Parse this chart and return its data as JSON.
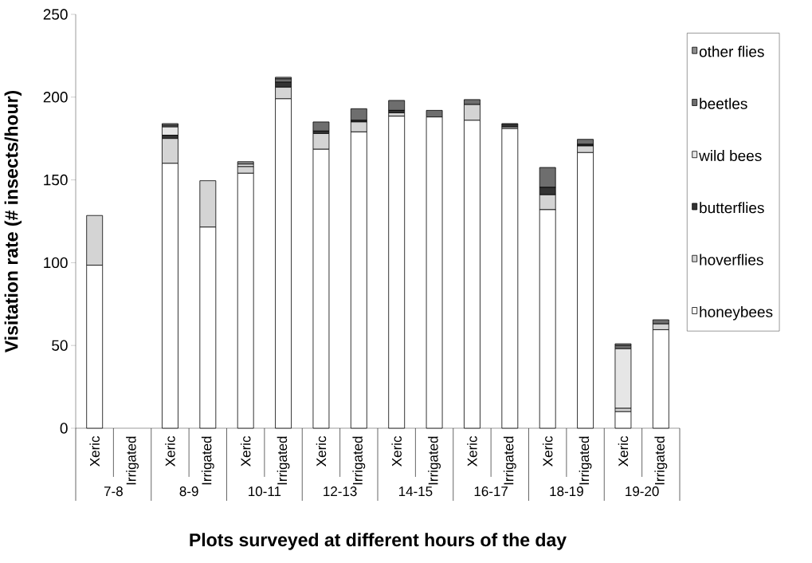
{
  "chart_data": {
    "type": "bar",
    "stacked": true,
    "xlabel": "Plots surveyed at different hours of the day",
    "ylabel": "Visitation rate (# insects/hour)",
    "categories": [
      "Xeric",
      "Irrigated",
      "Xeric",
      "Irrigated",
      "Xeric",
      "Irrigated",
      "Xeric",
      "Irrigated",
      "Xeric",
      "Irrigated",
      "Xeric",
      "Irrigated",
      "Xeric",
      "Irrigated",
      "Xeric",
      "Irrigated"
    ],
    "annotations": [
      "7-8",
      "8-9",
      "10-11",
      "12-13",
      "14-15",
      "16-17",
      "18-19",
      "19-20"
    ],
    "series": [
      {
        "name": "honeybees",
        "color": "#ffffff",
        "values": [
          98.5,
          0,
          160,
          121.5,
          154,
          199,
          168.5,
          179,
          188.5,
          188,
          186,
          181,
          132,
          166.5,
          10,
          59.5
        ]
      },
      {
        "name": "hoverflies",
        "color": "#d4d4d4",
        "values": [
          30,
          0,
          15,
          28,
          4,
          7,
          9.5,
          6,
          2,
          0,
          9.5,
          1,
          9,
          4,
          2,
          3.5
        ]
      },
      {
        "name": "butterflies",
        "color": "#333333",
        "values": [
          0,
          0,
          2,
          0,
          0,
          3,
          1.5,
          1,
          1.5,
          0,
          0,
          2,
          4.5,
          1,
          0,
          0
        ]
      },
      {
        "name": "wild bees",
        "color": "#e6e6e6",
        "values": [
          0,
          0,
          5,
          0,
          1.5,
          0,
          0,
          0,
          0,
          0,
          0,
          0,
          0,
          0,
          36,
          0
        ]
      },
      {
        "name": "beetles",
        "color": "#6e6e6e",
        "values": [
          0,
          0,
          1,
          0,
          0,
          2,
          5.5,
          7,
          6,
          4,
          3,
          0,
          12,
          3,
          2,
          2.5
        ]
      },
      {
        "name": "other flies",
        "color": "#8c8c8c",
        "values": [
          0,
          0,
          1,
          0,
          1.5,
          1,
          0,
          0,
          0,
          0,
          0,
          0,
          0,
          0,
          1,
          0
        ]
      }
    ],
    "ylim": [
      0,
      250
    ],
    "yticks": [
      0,
      50,
      100,
      150,
      200,
      250
    ],
    "legend": "right"
  }
}
